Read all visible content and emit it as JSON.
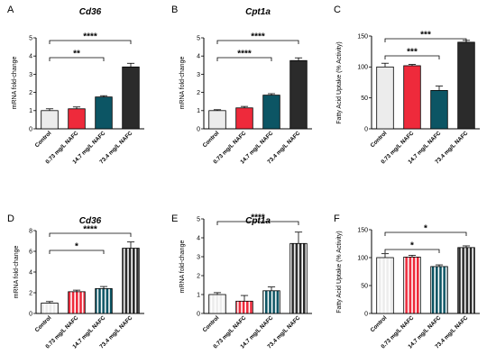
{
  "chart_data": [
    {
      "panel": "A",
      "type": "bar",
      "title": "Cd36",
      "ylabel": "mRNA fold-change",
      "categories": [
        "Control",
        "0.73 mg/L NAFC",
        "14.7 mg/L NAFC",
        "73.4 mg/L NAFC"
      ],
      "values": [
        1.0,
        1.1,
        1.75,
        3.4
      ],
      "errors": [
        0.1,
        0.1,
        0.07,
        0.2
      ],
      "ylim": [
        0,
        5
      ],
      "yticks": [
        0,
        1,
        2,
        3,
        4,
        5
      ],
      "fill": "solid",
      "significance": [
        {
          "from": 0,
          "to": 2,
          "label": "**"
        },
        {
          "from": 0,
          "to": 3,
          "label": "****"
        }
      ]
    },
    {
      "panel": "B",
      "type": "bar",
      "title": "Cpt1a",
      "ylabel": "mRNA fold-change",
      "categories": [
        "Control",
        "0.73 mg/L NAFC",
        "14.7 mg/L NAFC",
        "73.4 mg/L NAFC"
      ],
      "values": [
        1.0,
        1.15,
        1.85,
        3.75
      ],
      "errors": [
        0.05,
        0.08,
        0.08,
        0.15
      ],
      "ylim": [
        0,
        5
      ],
      "yticks": [
        0,
        1,
        2,
        3,
        4,
        5
      ],
      "fill": "solid",
      "significance": [
        {
          "from": 0,
          "to": 2,
          "label": "****"
        },
        {
          "from": 0,
          "to": 3,
          "label": "****"
        }
      ]
    },
    {
      "panel": "C",
      "type": "bar",
      "title": "",
      "ylabel": "Fatty Acid Uptake (% Activity)",
      "categories": [
        "Control",
        "0.73 mg/L NAFC",
        "14.7 mg/L NAFC",
        "73.4 mg/L NAFC"
      ],
      "values": [
        100,
        102,
        62,
        140
      ],
      "errors": [
        6,
        2,
        7,
        3
      ],
      "ylim": [
        0,
        150
      ],
      "yticks": [
        0,
        50,
        100,
        150
      ],
      "fill": "solid",
      "significance": [
        {
          "from": 0,
          "to": 2,
          "label": "***"
        },
        {
          "from": 0,
          "to": 3,
          "label": "***"
        }
      ]
    },
    {
      "panel": "D",
      "type": "bar",
      "title": "Cd36",
      "ylabel": "mRNA fold-change",
      "categories": [
        "Control",
        "0.73 mg/L NAFC",
        "14.7 mg/L NAFC",
        "73.4 mg/L NAFC"
      ],
      "values": [
        1.0,
        2.1,
        2.4,
        6.3
      ],
      "errors": [
        0.15,
        0.15,
        0.2,
        0.6
      ],
      "ylim": [
        0,
        8
      ],
      "yticks": [
        0,
        2,
        4,
        6,
        8
      ],
      "fill": "striped",
      "significance": [
        {
          "from": 0,
          "to": 2,
          "label": "*"
        },
        {
          "from": 0,
          "to": 3,
          "label": "****"
        }
      ]
    },
    {
      "panel": "E",
      "type": "bar",
      "title": "Cpt1a",
      "ylabel": "mRNA fold-change",
      "categories": [
        "Control",
        "0.73 mg/L NAFC",
        "14.7 mg/L NAFC",
        "73.4 mg/L NAFC"
      ],
      "values": [
        1.0,
        0.65,
        1.2,
        3.7
      ],
      "errors": [
        0.1,
        0.3,
        0.2,
        0.6
      ],
      "ylim": [
        0,
        5
      ],
      "yticks": [
        0,
        1,
        2,
        3,
        4,
        5
      ],
      "fill": "striped",
      "significance": [
        {
          "from": 0,
          "to": 3,
          "label": "****"
        }
      ]
    },
    {
      "panel": "F",
      "type": "bar",
      "title": "",
      "ylabel": "Fatty Acid Uptake (% Activity)",
      "categories": [
        "Control",
        "0.73 mg/L NAFC",
        "14.7 mg/L NAFC",
        "73.4 mg/L NAFC"
      ],
      "values": [
        100,
        101,
        84,
        118
      ],
      "errors": [
        7,
        3,
        3,
        3
      ],
      "ylim": [
        0,
        150
      ],
      "yticks": [
        0,
        50,
        100,
        150
      ],
      "fill": "striped",
      "significance": [
        {
          "from": 0,
          "to": 2,
          "label": "*"
        },
        {
          "from": 0,
          "to": 3,
          "label": "*"
        }
      ]
    }
  ],
  "colors": {
    "control": "#ececec",
    "low": "#ee2a3b",
    "mid": "#0c5564",
    "high": "#2b2b2b",
    "stripe": "#ffffff",
    "axis": "#000000"
  }
}
